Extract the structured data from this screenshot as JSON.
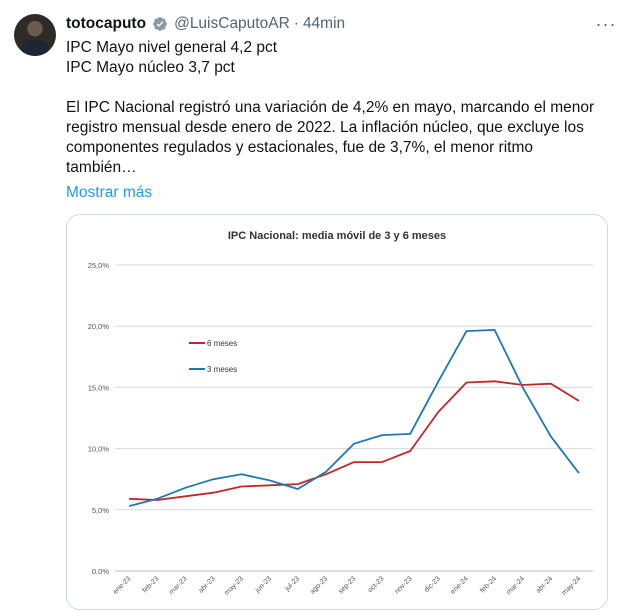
{
  "tweet": {
    "display_name": "totocaputo",
    "handle": "@LuisCaputoAR",
    "separator": "·",
    "time": "44min",
    "lines": [
      "IPC Mayo nivel general 4,2 pct",
      "IPC Mayo núcleo 3,7 pct",
      "",
      "El IPC Nacional registró una variación de 4,2% en mayo, marcando el menor",
      "registro mensual desde enero de 2022. La inflación núcleo, que excluye los",
      "componentes regulados y estacionales, fue de 3,7%, el menor ritmo",
      "también…"
    ],
    "show_more": "Mostrar más",
    "icons": {
      "verified": "verified-badge-icon",
      "more": "more-options-icon"
    },
    "colors": {
      "link": "#1d9bf0",
      "secondary": "#536471"
    }
  },
  "chart_data": {
    "type": "line",
    "title": "IPC Nacional: media móvil de 3 y 6 meses",
    "categories": [
      "ene-23",
      "feb-23",
      "mar-23",
      "abr-23",
      "may-23",
      "jun-23",
      "jul-23",
      "ago-23",
      "sep-23",
      "oct-23",
      "nov-23",
      "dic-23",
      "ene-24",
      "feb-24",
      "mar-24",
      "abr-24",
      "may-24"
    ],
    "series": [
      {
        "name": "6 meses",
        "color": "#c0282d",
        "values": [
          5.9,
          5.8,
          6.1,
          6.4,
          6.9,
          7.0,
          7.1,
          7.9,
          8.9,
          8.9,
          9.8,
          13.0,
          15.4,
          15.5,
          15.2,
          15.3,
          13.9
        ]
      },
      {
        "name": "3 meses",
        "color": "#1f77b4",
        "values": [
          5.3,
          5.9,
          6.8,
          7.5,
          7.9,
          7.4,
          6.7,
          8.1,
          10.4,
          11.1,
          11.2,
          15.5,
          19.6,
          19.7,
          15.0,
          11.0,
          8.0
        ]
      }
    ],
    "ylim": [
      0,
      25
    ],
    "yticks": [
      "0,0%",
      "5,0%",
      "10,0%",
      "15,0%",
      "20,0%",
      "25,0%"
    ],
    "ytick_values": [
      0,
      5,
      10,
      15,
      20,
      25
    ],
    "grid": true,
    "legend_position": "inside-left"
  }
}
